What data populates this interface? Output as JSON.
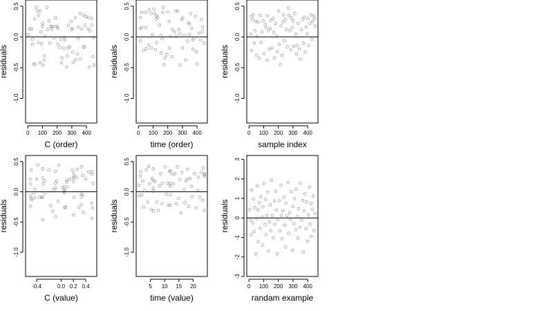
{
  "chart_data": [
    {
      "type": "scatter",
      "xlabel": "C (order)",
      "ylabel": "residuals",
      "xlim": [
        -15,
        470
      ],
      "ylim": [
        -1.4,
        0.6
      ],
      "xticks": [
        0,
        100,
        200,
        300,
        400
      ],
      "xtick_labels": [
        "0",
        "100",
        "200",
        "300",
        "400"
      ],
      "yticks": [
        0.5,
        0.0,
        -0.5,
        -1.0
      ],
      "ytick_labels": [
        "0.5",
        "0.0",
        "-0.5",
        "-1.0"
      ],
      "hline": 0,
      "x": [
        3,
        11,
        26,
        33,
        33,
        42,
        46,
        48,
        58,
        67,
        71,
        73,
        83,
        84,
        90,
        94,
        101,
        101,
        104,
        112,
        113,
        118,
        130,
        135,
        144,
        151,
        158,
        163,
        163,
        177,
        185,
        190,
        201,
        204,
        206,
        218,
        225,
        230,
        232,
        246,
        248,
        253,
        264,
        269,
        275,
        277,
        285,
        296,
        298,
        306,
        307,
        309,
        324,
        327,
        339,
        343,
        345,
        357,
        359,
        365,
        379,
        380,
        385,
        390,
        396,
        410,
        411,
        418,
        424,
        434,
        435,
        444,
        448,
        451
      ],
      "y": [
        0.04,
        0.13,
        0.13,
        -0.04,
        -0.12,
        -0.44,
        0.29,
        -0.45,
        0.48,
        0.42,
        -0.09,
        0.35,
        -0.42,
        0.42,
        0.08,
        -0.11,
        0.22,
        0.17,
        -0.46,
        -0.38,
        -0.31,
        0.01,
        0.48,
        0.12,
        0.26,
        -0.1,
        0.17,
        0.17,
        0.13,
        -0.02,
        0.17,
        0.31,
        0.17,
        -0.12,
        0.14,
        -0.17,
        -0.04,
        -0.42,
        -0.34,
        -0.18,
        -0.01,
        -0.05,
        -0.49,
        -0.31,
        -0.18,
        0.19,
        -0.16,
        0.25,
        0.12,
        0.14,
        -0.25,
        -0.41,
        0.31,
        -0.37,
        -0.28,
        0.16,
        -0.03,
        0.38,
        -0.36,
        0.13,
        -0.17,
        0.36,
        -0.16,
        0.19,
        0.33,
        0.32,
        0.13,
        -0.49,
        0.1,
        0.3,
        0.19,
        -0.32,
        -0.01,
        -0.46
      ]
    },
    {
      "type": "scatter",
      "xlabel": "time (order)",
      "ylabel": "residuals",
      "xlim": [
        -15,
        470
      ],
      "ylim": [
        -1.4,
        0.6
      ],
      "xticks": [
        0,
        100,
        200,
        300,
        400
      ],
      "xtick_labels": [
        "0",
        "100",
        "200",
        "300",
        "400"
      ],
      "yticks": [
        0.5,
        0.0,
        -0.5,
        -1.0
      ],
      "ytick_labels": [
        "0.5",
        "0.0",
        "-0.5",
        "-1.0"
      ],
      "hline": 0,
      "x": [
        11,
        14,
        14,
        24,
        24,
        35,
        49,
        50,
        54,
        70,
        74,
        87,
        87,
        96,
        105,
        111,
        117,
        121,
        123,
        123,
        132,
        144,
        154,
        155,
        161,
        165,
        170,
        176,
        181,
        194,
        199,
        210,
        213,
        219,
        231,
        231,
        246,
        253,
        259,
        268,
        276,
        283,
        285,
        296,
        300,
        302,
        312,
        322,
        335,
        340,
        349,
        349,
        356,
        362,
        371,
        373,
        378,
        389,
        395,
        401,
        414,
        425,
        429,
        436,
        438,
        448
      ],
      "y": [
        0.14,
        -0.06,
        0.32,
        0.4,
        0.15,
        -0.22,
        0.4,
        0.15,
        -0.19,
        -0.13,
        0.44,
        -0.18,
        0.38,
        0.04,
        0.45,
        0.38,
        -0.21,
        0.29,
        0.34,
        -0.09,
        0.32,
        0.19,
        0.02,
        -0.26,
        -0.03,
        0.4,
        0.48,
        -0.45,
        -0.34,
        -0.29,
        0.41,
        0.25,
        -0.18,
        0.01,
        0.12,
        -0.32,
        0.08,
        0.42,
        0.01,
        0.42,
        0.12,
        0.05,
        -0.46,
        0.28,
        -0.18,
        0.31,
        0.02,
        -0.38,
        -0.07,
        0.23,
        0.21,
        0.04,
        0.38,
        0.14,
        -0.05,
        -0.2,
        -0.02,
        0.33,
        -0.24,
        -0.44,
        0.06,
        -0.05,
        0.28,
        0.09,
        0.16,
        -0.1
      ]
    },
    {
      "type": "scatter",
      "xlabel": "sample index",
      "ylabel": "residuals",
      "xlim": [
        -15,
        470
      ],
      "ylim": [
        -1.4,
        0.6
      ],
      "xticks": [
        0,
        100,
        200,
        300,
        400
      ],
      "xtick_labels": [
        "0",
        "100",
        "200",
        "300",
        "400"
      ],
      "yticks": [
        0.5,
        0.0,
        -0.5,
        -1.0
      ],
      "ytick_labels": [
        "0.5",
        "0.0",
        "-0.5",
        "-1.0"
      ],
      "hline": 0,
      "x": [
        12,
        16,
        16,
        24,
        29,
        36,
        41,
        46,
        51,
        55,
        62,
        70,
        76,
        82,
        89,
        96,
        103,
        111,
        117,
        124,
        125,
        133,
        138,
        145,
        150,
        157,
        164,
        168,
        174,
        182,
        188,
        193,
        201,
        207,
        215,
        219,
        224,
        231,
        235,
        241,
        247,
        255,
        260,
        268,
        272,
        279,
        285,
        290,
        294,
        300,
        306,
        312,
        318,
        324,
        330,
        336,
        344,
        349,
        356,
        365,
        371,
        377,
        383,
        389,
        395,
        401,
        407,
        414,
        420,
        428,
        433,
        440,
        446,
        451
      ],
      "y": [
        0.05,
        0.33,
        -0.22,
        0.28,
        0.36,
        -0.1,
        0.1,
        0.25,
        -0.3,
        0.01,
        0.24,
        -0.35,
        0.35,
        -0.09,
        0.08,
        0.26,
        -0.27,
        0.2,
        0.15,
        -0.38,
        0.34,
        0.1,
        -0.2,
        0.14,
        0.27,
        -0.18,
        0.3,
        0.07,
        -0.34,
        0.22,
        0.01,
        -0.24,
        0.42,
        -0.12,
        -0.45,
        0.18,
        -0.3,
        0.24,
        0.36,
        -0.06,
        0.28,
        0.12,
        -0.16,
        0.47,
        0.35,
        0.1,
        -0.21,
        0.31,
        0.15,
        0.26,
        -0.15,
        0.38,
        0.05,
        -0.28,
        -0.14,
        0.22,
        -0.2,
        -0.36,
        0.12,
        0.28,
        -0.1,
        0.32,
        -0.24,
        0.16,
        0.05,
        0.3,
        -0.14,
        0.22,
        0.36,
        -0.04,
        0.25,
        0.34,
        0.3,
        0.18
      ]
    },
    {
      "type": "scatter",
      "xlabel": "C (value)",
      "ylabel": "residuals",
      "xlim": [
        -0.58,
        0.58
      ],
      "ylim": [
        -1.4,
        0.6
      ],
      "xticks": [
        -0.4,
        0.0,
        0.2,
        0.4
      ],
      "xtick_labels": [
        "-0.4",
        "0.0",
        "0.2",
        "0.4"
      ],
      "yticks": [
        0.5,
        0.0,
        -0.5,
        -1.0
      ],
      "ytick_labels": [
        "0.5",
        "0.0",
        "-0.5",
        "-1.0"
      ],
      "hline": 0,
      "x": [
        -0.5,
        -0.5,
        -0.5,
        -0.5,
        -0.49,
        -0.49,
        -0.48,
        -0.45,
        -0.43,
        -0.43,
        -0.4,
        -0.38,
        -0.35,
        -0.32,
        -0.3,
        -0.3,
        -0.3,
        -0.3,
        -0.29,
        -0.27,
        -0.27,
        -0.2,
        -0.17,
        -0.14,
        -0.12,
        -0.09,
        -0.09,
        -0.09,
        -0.09,
        -0.07,
        -0.05,
        -0.04,
        0.02,
        0.05,
        0.05,
        0.05,
        0.06,
        0.06,
        0.07,
        0.09,
        0.09,
        0.1,
        0.14,
        0.18,
        0.2,
        0.2,
        0.2,
        0.2,
        0.21,
        0.21,
        0.25,
        0.26,
        0.29,
        0.33,
        0.33,
        0.33,
        0.33,
        0.35,
        0.35,
        0.36,
        0.4,
        0.45,
        0.5,
        0.5,
        0.5,
        0.5,
        0.51,
        0.52
      ],
      "y": [
        0.21,
        -0.07,
        -0.24,
        0.13,
        0.36,
        -0.11,
        -0.13,
        -0.02,
        -0.1,
        0.04,
        0.21,
        0.44,
        -0.09,
        -0.09,
        0.23,
        -0.46,
        0.38,
        -0.09,
        0.13,
        -0.02,
        0.18,
        0.36,
        -0.23,
        -0.32,
        0.04,
        -0.41,
        0.34,
        0.14,
        0.06,
        0.18,
        -0.16,
        0.44,
        0.07,
        0.01,
        -0.01,
        0.08,
        -0.26,
        0.03,
        -0.25,
        0.16,
        0.19,
        0.08,
        0.21,
        0.36,
        0.23,
        -0.38,
        0.17,
        0.31,
        0.25,
        -0.09,
        0.24,
        0.37,
        -0.26,
        -0.04,
        0.41,
        -0.09,
        -0.21,
        0.27,
        -0.05,
        -0.34,
        0.21,
        0.33,
        0.29,
        -0.44,
        -0.19,
        0.33,
        -0.27,
        0.14
      ]
    },
    {
      "type": "scatter",
      "xlabel": "time (value)",
      "ylabel": "residuals",
      "xlim": [
        0,
        25
      ],
      "ylim": [
        -1.4,
        0.6
      ],
      "xticks": [
        5,
        10,
        15,
        20
      ],
      "xtick_labels": [
        "5",
        "10",
        "15",
        "20"
      ],
      "yticks": [
        0.5,
        0.0,
        -0.5,
        -1.0
      ],
      "ytick_labels": [
        "0.5",
        "0.0",
        "-0.5",
        "-1.0"
      ],
      "hline": 0,
      "x": [
        0.9,
        1.1,
        1.4,
        1.5,
        2,
        2.3,
        2.7,
        3,
        3.6,
        4,
        4.4,
        4.7,
        5.3,
        5.6,
        6,
        6,
        6,
        6,
        6.1,
        6.6,
        7.2,
        7.8,
        8.2,
        8.6,
        9.1,
        9.2,
        10.2,
        10.6,
        11.1,
        11.3,
        11.8,
        12,
        12,
        12,
        12,
        12,
        12.6,
        13.1,
        13.6,
        14.2,
        14.5,
        14.9,
        15.3,
        15.7,
        16.1,
        16.8,
        17.1,
        17.5,
        18,
        18,
        18.5,
        18.9,
        19.4,
        19.8,
        20.5,
        21.1,
        21.7,
        21.9,
        22.3,
        22.9,
        23.4,
        23.6,
        24,
        24,
        24,
        24
      ],
      "y": [
        0.11,
        -0.06,
        0.26,
        0.33,
        -0.05,
        0.18,
        -0.25,
        0.02,
        0.36,
        -0.17,
        0.42,
        0.13,
        -0.29,
        0.22,
        0.06,
        0.19,
        0.38,
        0.01,
        -0.32,
        0.17,
        -0.17,
        -0.31,
        0.1,
        0.3,
        -0.2,
        0.14,
        0.41,
        -0.04,
        0.14,
        -0.22,
        0.34,
        0.14,
        -0.22,
        0.35,
        -0.05,
        0.09,
        0.29,
        0.13,
        0.3,
        -0.2,
        0.41,
        -0.11,
        0.2,
        -0.35,
        0.32,
        0.04,
        -0.18,
        0.18,
        0.37,
        0.21,
        -0.24,
        0.22,
        0.09,
        -0.08,
        0.3,
        -0.27,
        0.03,
        0.24,
        -0.09,
        0.32,
        -0.14,
        0.39,
        0.3,
        -0.31,
        0.26,
        0.28
      ]
    },
    {
      "type": "scatter",
      "xlabel": "randam example",
      "ylabel": "residuals",
      "xlim": [
        -15,
        470
      ],
      "ylim": [
        -3.0,
        3.2
      ],
      "xticks": [
        0,
        100,
        200,
        300,
        400
      ],
      "xtick_labels": [
        "0",
        "100",
        "200",
        "300",
        "400"
      ],
      "yticks": [
        3,
        2,
        1,
        0,
        -1,
        -2,
        -3
      ],
      "ytick_labels": [
        "3",
        "2",
        "1",
        "0",
        "-1",
        "-2",
        "-3"
      ],
      "hline": 0,
      "x": [
        5,
        11,
        16,
        19,
        27,
        30,
        34,
        39,
        46,
        51,
        55,
        62,
        63,
        70,
        76,
        81,
        90,
        93,
        95,
        103,
        110,
        113,
        116,
        121,
        127,
        133,
        139,
        144,
        149,
        153,
        159,
        166,
        174,
        176,
        183,
        186,
        192,
        197,
        207,
        210,
        218,
        220,
        226,
        230,
        238,
        243,
        250,
        251,
        259,
        267,
        271,
        277,
        283,
        288,
        297,
        300,
        306,
        310,
        319,
        321,
        330,
        333,
        338,
        346,
        350,
        359,
        366,
        370,
        377,
        381,
        388,
        392,
        399,
        405,
        413,
        416,
        423,
        424,
        432,
        438,
        443,
        451
      ],
      "y": [
        0.42,
        -0.11,
        -0.86,
        1.44,
        -0.25,
        0.97,
        -0.69,
        0.52,
        -1.85,
        -0.04,
        1.65,
        0.41,
        -1.22,
        0.77,
        -0.52,
        1.08,
        0.05,
        -1.39,
        0.57,
        1.76,
        -0.35,
        0.95,
        -0.86,
        0.14,
        1.32,
        -1.69,
        -0.2,
        0.66,
        -0.66,
        1.93,
        0.13,
        -1.02,
        0.86,
        -0.32,
        1.37,
        0.4,
        -1.84,
        -0.09,
        0.9,
        -0.66,
        1.67,
        0.14,
        -1.07,
        0.37,
        1.06,
        -0.37,
        -1.49,
        0.76,
        0.12,
        1.81,
        -0.79,
        0.27,
        -0.09,
        1.35,
        -1.66,
        0.59,
        -0.29,
        0.99,
        -0.61,
        1.47,
        0.07,
        -1.04,
        0.47,
        -0.49,
        1.79,
        -0.12,
        0.89,
        -1.75,
        0.36,
        1.23,
        -0.55,
        0.82,
        -1.2,
        0.16,
        1.58,
        -0.33,
        0.74,
        -0.95,
        0.44,
        1.12,
        -0.65,
        0.22
      ]
    }
  ]
}
